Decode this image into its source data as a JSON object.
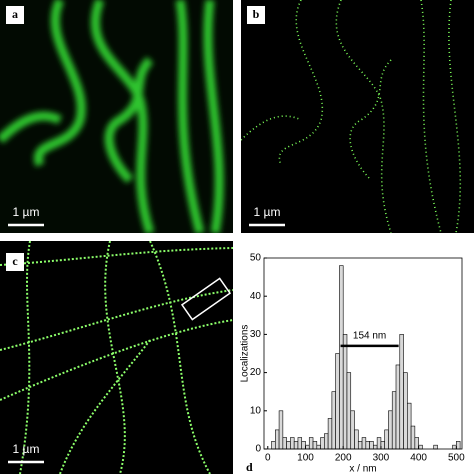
{
  "panels": [
    {
      "label": "a",
      "scale_bar": "1 µm"
    },
    {
      "label": "b",
      "scale_bar": "1 µm"
    },
    {
      "label": "c",
      "scale_bar": "1 µm"
    },
    {
      "label": "d"
    }
  ],
  "chart_data": {
    "type": "histogram",
    "bins": [
      0,
      10,
      20,
      30,
      40,
      50,
      60,
      70,
      80,
      90,
      100,
      110,
      120,
      130,
      140,
      150,
      160,
      170,
      180,
      190,
      200,
      210,
      220,
      230,
      240,
      250,
      260,
      270,
      280,
      290,
      300,
      310,
      320,
      330,
      340,
      350,
      360,
      370,
      380,
      390,
      400,
      410,
      420,
      430,
      440,
      450,
      460,
      470,
      480,
      490,
      500,
      510
    ],
    "values": [
      0,
      2,
      5,
      10,
      3,
      2,
      3,
      2,
      3,
      2,
      1,
      3,
      2,
      1,
      3,
      4,
      8,
      15,
      25,
      48,
      30,
      20,
      10,
      5,
      2,
      3,
      2,
      2,
      1,
      3,
      2,
      5,
      10,
      15,
      22,
      30,
      20,
      12,
      6,
      3,
      1,
      0,
      0,
      0,
      1,
      0,
      0,
      0,
      0,
      1,
      2
    ],
    "color": "#d9d9d9",
    "x_label": "x / nm",
    "y_label": "Localizations",
    "xlim": [
      -10,
      515
    ],
    "ylim": [
      0,
      50
    ],
    "xticks": [
      0,
      100,
      200,
      300,
      400,
      500
    ],
    "yticks": [
      0,
      10,
      20,
      30,
      40,
      50
    ],
    "annotation": {
      "text": "154 nm",
      "x": [
        193,
        347
      ],
      "y": 27
    }
  }
}
